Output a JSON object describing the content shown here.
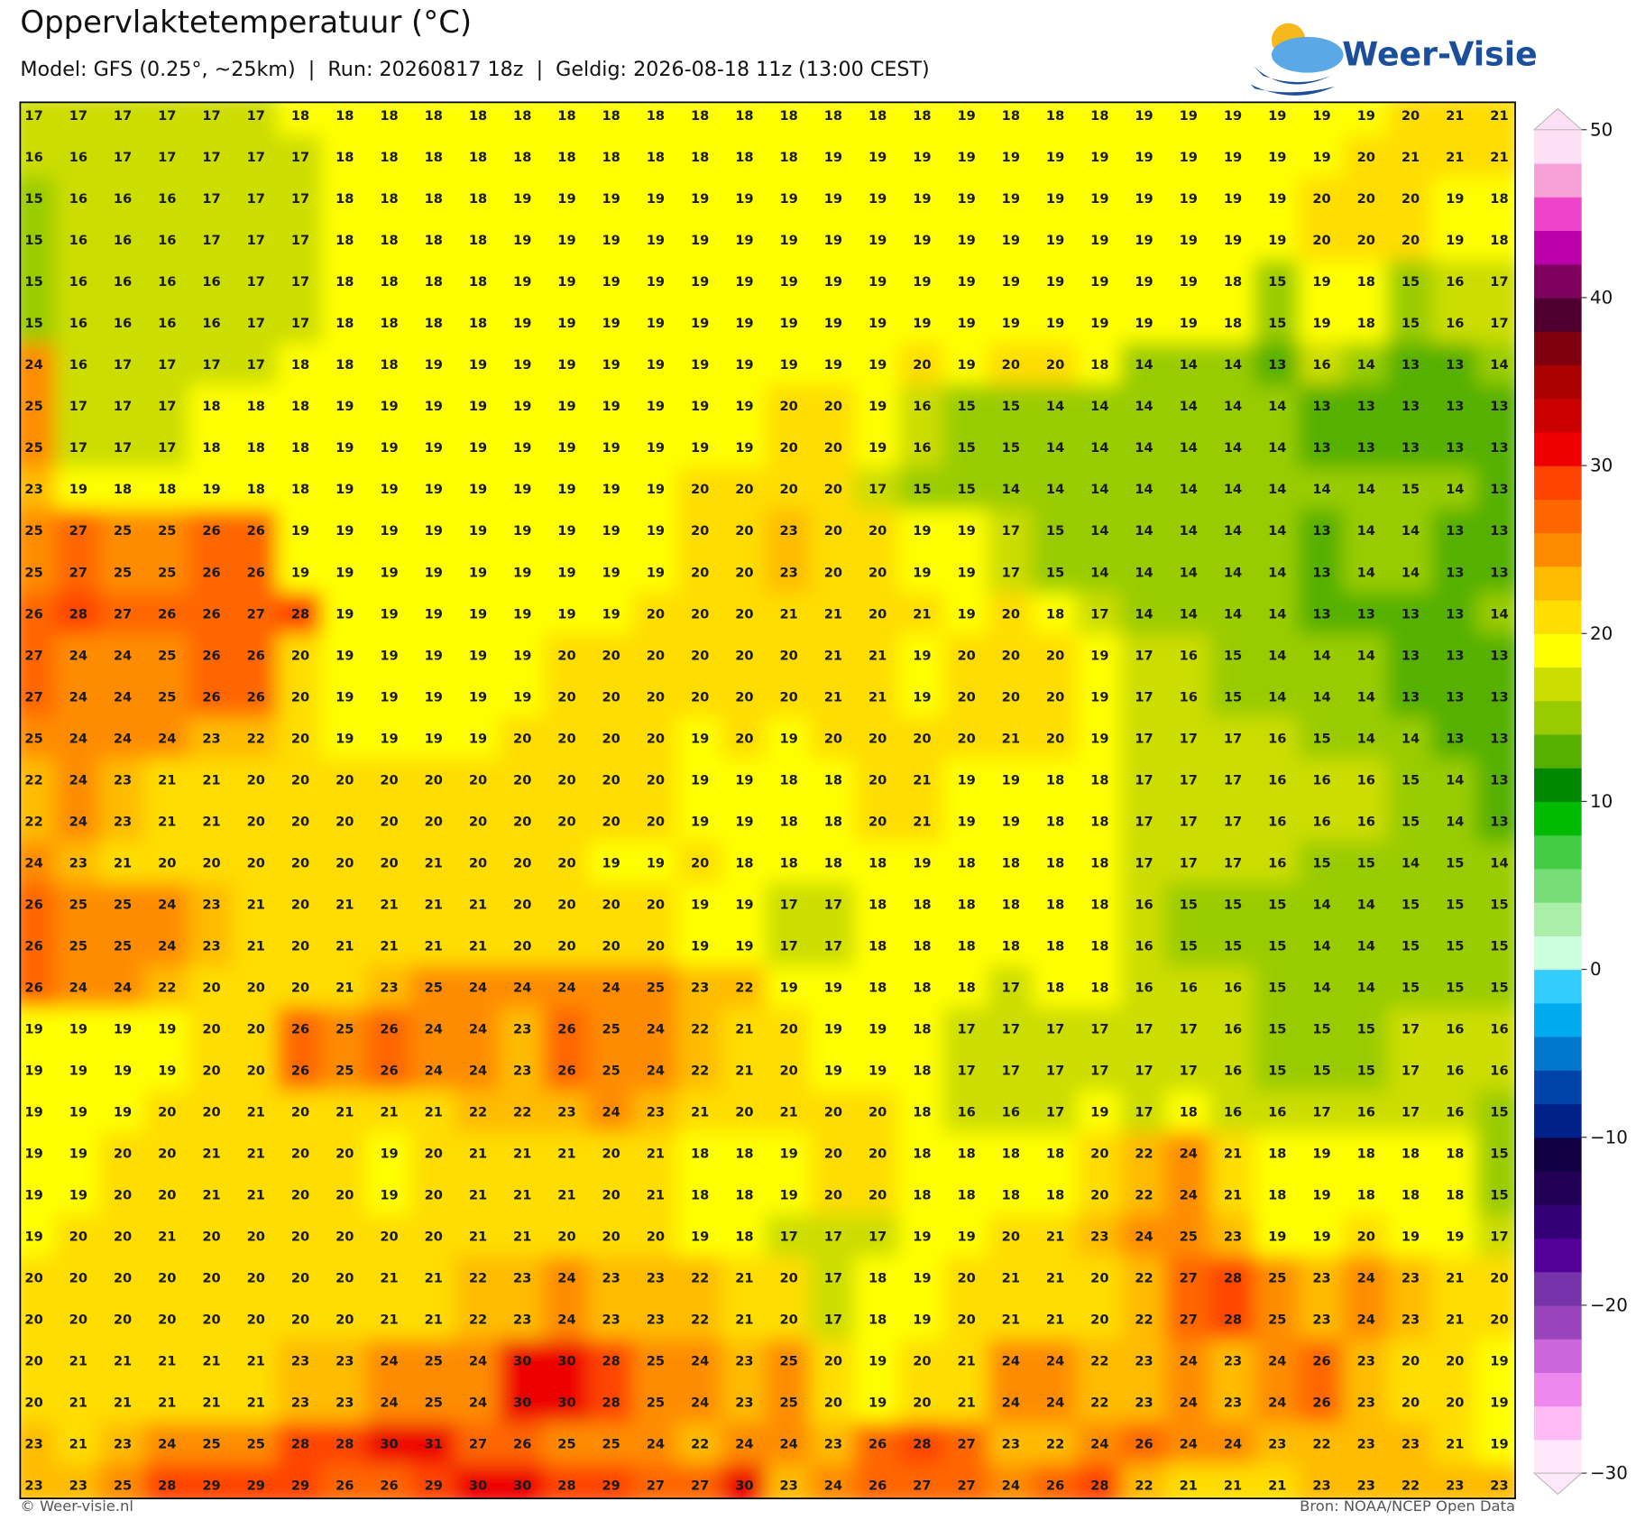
{
  "chart_data": {
    "type": "heatmap",
    "title": "Oppervlaktetemperatuur (°C)",
    "subtitle": "Model: GFS (0.25°, ~25km)  |  Run: 20260817 18z  |  Geldig: 2026-08-18 11z (13:00 CEST)",
    "logo": "Weer-Visie",
    "copyright": "© Weer-visie.nl",
    "source": "Bron: NOAA/NCEP Open Data",
    "values": [
      [
        17,
        17,
        17,
        17,
        17,
        17,
        18,
        18,
        18,
        18,
        18,
        18,
        18,
        18,
        18,
        18,
        18,
        18,
        18,
        18,
        18,
        19,
        18,
        18,
        18,
        19,
        19,
        19,
        19,
        19,
        19,
        20,
        21,
        21
      ],
      [
        16,
        16,
        17,
        17,
        17,
        17,
        17,
        18,
        18,
        18,
        18,
        18,
        18,
        18,
        18,
        18,
        18,
        18,
        19,
        19,
        19,
        19,
        19,
        19,
        19,
        19,
        19,
        19,
        19,
        19,
        20,
        21,
        21,
        21
      ],
      [
        15,
        16,
        16,
        16,
        17,
        17,
        17,
        18,
        18,
        18,
        18,
        19,
        19,
        19,
        19,
        19,
        19,
        19,
        19,
        19,
        19,
        19,
        19,
        19,
        19,
        19,
        19,
        19,
        19,
        20,
        20,
        20,
        19,
        18
      ],
      [
        15,
        16,
        16,
        16,
        17,
        17,
        17,
        18,
        18,
        18,
        18,
        19,
        19,
        19,
        19,
        19,
        19,
        19,
        19,
        19,
        19,
        19,
        19,
        19,
        19,
        19,
        19,
        19,
        19,
        20,
        20,
        20,
        19,
        18
      ],
      [
        15,
        16,
        16,
        16,
        16,
        17,
        17,
        18,
        18,
        18,
        18,
        19,
        19,
        19,
        19,
        19,
        19,
        19,
        19,
        19,
        19,
        19,
        19,
        19,
        19,
        19,
        19,
        18,
        15,
        19,
        18,
        15,
        16,
        17
      ],
      [
        15,
        16,
        16,
        16,
        16,
        17,
        17,
        18,
        18,
        18,
        18,
        19,
        19,
        19,
        19,
        19,
        19,
        19,
        19,
        19,
        19,
        19,
        19,
        19,
        19,
        19,
        19,
        18,
        15,
        19,
        18,
        15,
        16,
        17
      ],
      [
        24,
        16,
        17,
        17,
        17,
        17,
        18,
        18,
        18,
        19,
        19,
        19,
        19,
        19,
        19,
        19,
        19,
        19,
        19,
        19,
        20,
        19,
        20,
        20,
        18,
        14,
        14,
        14,
        13,
        16,
        14,
        13,
        13,
        14
      ],
      [
        25,
        17,
        17,
        17,
        18,
        18,
        18,
        19,
        19,
        19,
        19,
        19,
        19,
        19,
        19,
        19,
        19,
        20,
        20,
        19,
        16,
        15,
        15,
        14,
        14,
        14,
        14,
        14,
        14,
        13,
        13,
        13,
        13,
        13
      ],
      [
        25,
        17,
        17,
        17,
        18,
        18,
        18,
        19,
        19,
        19,
        19,
        19,
        19,
        19,
        19,
        19,
        19,
        20,
        20,
        19,
        16,
        15,
        15,
        14,
        14,
        14,
        14,
        14,
        14,
        13,
        13,
        13,
        13,
        13
      ],
      [
        23,
        19,
        18,
        18,
        19,
        18,
        18,
        19,
        19,
        19,
        19,
        19,
        19,
        19,
        19,
        20,
        20,
        20,
        20,
        17,
        15,
        15,
        14,
        14,
        14,
        14,
        14,
        14,
        14,
        14,
        14,
        15,
        14,
        13
      ],
      [
        25,
        27,
        25,
        25,
        26,
        26,
        19,
        19,
        19,
        19,
        19,
        19,
        19,
        19,
        19,
        20,
        20,
        23,
        20,
        20,
        19,
        19,
        17,
        15,
        14,
        14,
        14,
        14,
        14,
        13,
        14,
        14,
        13,
        13
      ],
      [
        25,
        27,
        25,
        25,
        26,
        26,
        19,
        19,
        19,
        19,
        19,
        19,
        19,
        19,
        19,
        20,
        20,
        23,
        20,
        20,
        19,
        19,
        17,
        15,
        14,
        14,
        14,
        14,
        14,
        13,
        14,
        14,
        13,
        13
      ],
      [
        26,
        28,
        27,
        26,
        26,
        27,
        28,
        19,
        19,
        19,
        19,
        19,
        19,
        19,
        20,
        20,
        20,
        21,
        21,
        20,
        21,
        19,
        20,
        18,
        17,
        14,
        14,
        14,
        14,
        13,
        13,
        13,
        13,
        14
      ],
      [
        27,
        24,
        24,
        25,
        26,
        26,
        20,
        19,
        19,
        19,
        19,
        19,
        20,
        20,
        20,
        20,
        20,
        20,
        21,
        21,
        19,
        20,
        20,
        20,
        19,
        17,
        16,
        15,
        14,
        14,
        14,
        13,
        13,
        13
      ],
      [
        27,
        24,
        24,
        25,
        26,
        26,
        20,
        19,
        19,
        19,
        19,
        19,
        20,
        20,
        20,
        20,
        20,
        20,
        21,
        21,
        19,
        20,
        20,
        20,
        19,
        17,
        16,
        15,
        14,
        14,
        14,
        13,
        13,
        13
      ],
      [
        25,
        24,
        24,
        24,
        23,
        22,
        20,
        19,
        19,
        19,
        19,
        20,
        20,
        20,
        20,
        19,
        20,
        19,
        20,
        20,
        20,
        20,
        21,
        20,
        19,
        17,
        17,
        17,
        16,
        15,
        14,
        14,
        13,
        13
      ],
      [
        22,
        24,
        23,
        21,
        21,
        20,
        20,
        20,
        20,
        20,
        20,
        20,
        20,
        20,
        20,
        19,
        19,
        18,
        18,
        20,
        21,
        19,
        19,
        18,
        18,
        17,
        17,
        17,
        16,
        16,
        16,
        15,
        14,
        13
      ],
      [
        22,
        24,
        23,
        21,
        21,
        20,
        20,
        20,
        20,
        20,
        20,
        20,
        20,
        20,
        20,
        19,
        19,
        18,
        18,
        20,
        21,
        19,
        19,
        18,
        18,
        17,
        17,
        17,
        16,
        16,
        16,
        15,
        14,
        13
      ],
      [
        24,
        23,
        21,
        20,
        20,
        20,
        20,
        20,
        20,
        21,
        20,
        20,
        20,
        19,
        19,
        20,
        18,
        18,
        18,
        18,
        19,
        18,
        18,
        18,
        18,
        17,
        17,
        17,
        16,
        15,
        15,
        14,
        15,
        14
      ],
      [
        26,
        25,
        25,
        24,
        23,
        21,
        20,
        21,
        21,
        21,
        21,
        20,
        20,
        20,
        20,
        19,
        19,
        17,
        17,
        18,
        18,
        18,
        18,
        18,
        18,
        16,
        15,
        15,
        15,
        14,
        14,
        15,
        15,
        15
      ],
      [
        26,
        25,
        25,
        24,
        23,
        21,
        20,
        21,
        21,
        21,
        21,
        20,
        20,
        20,
        20,
        19,
        19,
        17,
        17,
        18,
        18,
        18,
        18,
        18,
        18,
        16,
        15,
        15,
        15,
        14,
        14,
        15,
        15,
        15
      ],
      [
        26,
        24,
        24,
        22,
        20,
        20,
        20,
        21,
        23,
        25,
        24,
        24,
        24,
        24,
        25,
        23,
        22,
        19,
        19,
        18,
        18,
        18,
        17,
        18,
        18,
        16,
        16,
        16,
        15,
        14,
        14,
        15,
        15,
        15
      ],
      [
        19,
        19,
        19,
        19,
        20,
        20,
        26,
        25,
        26,
        24,
        24,
        23,
        26,
        25,
        24,
        22,
        21,
        20,
        19,
        19,
        18,
        17,
        17,
        17,
        17,
        17,
        17,
        16,
        15,
        15,
        15,
        17,
        16,
        16
      ],
      [
        19,
        19,
        19,
        19,
        20,
        20,
        26,
        25,
        26,
        24,
        24,
        23,
        26,
        25,
        24,
        22,
        21,
        20,
        19,
        19,
        18,
        17,
        17,
        17,
        17,
        17,
        17,
        16,
        15,
        15,
        15,
        17,
        16,
        16
      ],
      [
        19,
        19,
        19,
        20,
        20,
        21,
        20,
        21,
        21,
        21,
        22,
        22,
        23,
        24,
        23,
        21,
        20,
        21,
        20,
        20,
        18,
        16,
        16,
        17,
        19,
        17,
        18,
        16,
        16,
        17,
        16,
        17,
        16,
        15
      ],
      [
        19,
        19,
        20,
        20,
        21,
        21,
        20,
        20,
        19,
        20,
        21,
        21,
        21,
        20,
        21,
        18,
        18,
        19,
        20,
        20,
        18,
        18,
        18,
        18,
        20,
        22,
        24,
        21,
        18,
        19,
        18,
        18,
        18,
        15
      ],
      [
        19,
        19,
        20,
        20,
        21,
        21,
        20,
        20,
        19,
        20,
        21,
        21,
        21,
        20,
        21,
        18,
        18,
        19,
        20,
        20,
        18,
        18,
        18,
        18,
        20,
        22,
        24,
        21,
        18,
        19,
        18,
        18,
        18,
        15
      ],
      [
        19,
        20,
        20,
        21,
        20,
        20,
        20,
        20,
        20,
        20,
        21,
        21,
        20,
        20,
        20,
        19,
        18,
        17,
        17,
        17,
        19,
        19,
        20,
        21,
        23,
        24,
        25,
        23,
        19,
        19,
        20,
        19,
        19,
        17
      ],
      [
        20,
        20,
        20,
        20,
        20,
        20,
        20,
        20,
        21,
        21,
        22,
        23,
        24,
        23,
        23,
        22,
        21,
        20,
        17,
        18,
        19,
        20,
        21,
        21,
        20,
        22,
        27,
        28,
        25,
        23,
        24,
        23,
        21,
        20
      ],
      [
        20,
        20,
        20,
        20,
        20,
        20,
        20,
        20,
        21,
        21,
        22,
        23,
        24,
        23,
        23,
        22,
        21,
        20,
        17,
        18,
        19,
        20,
        21,
        21,
        20,
        22,
        27,
        28,
        25,
        23,
        24,
        23,
        21,
        20
      ],
      [
        20,
        21,
        21,
        21,
        21,
        21,
        23,
        23,
        24,
        25,
        24,
        30,
        30,
        28,
        25,
        24,
        23,
        25,
        20,
        19,
        20,
        21,
        24,
        24,
        22,
        23,
        24,
        23,
        24,
        26,
        23,
        20,
        20,
        19
      ],
      [
        20,
        21,
        21,
        21,
        21,
        21,
        23,
        23,
        24,
        25,
        24,
        30,
        30,
        28,
        25,
        24,
        23,
        25,
        20,
        19,
        20,
        21,
        24,
        24,
        22,
        23,
        24,
        23,
        24,
        26,
        23,
        20,
        20,
        19
      ],
      [
        23,
        21,
        23,
        24,
        25,
        25,
        28,
        28,
        30,
        31,
        27,
        26,
        25,
        25,
        24,
        22,
        24,
        24,
        23,
        26,
        28,
        27,
        23,
        22,
        24,
        26,
        24,
        24,
        23,
        22,
        23,
        23,
        21,
        19
      ],
      [
        23,
        23,
        25,
        28,
        29,
        29,
        29,
        26,
        26,
        29,
        30,
        30,
        28,
        29,
        27,
        27,
        30,
        23,
        24,
        26,
        27,
        27,
        24,
        26,
        28,
        22,
        21,
        21,
        21,
        23,
        23,
        22,
        23,
        23
      ]
    ],
    "colorbar": {
      "lim": [
        -30,
        50
      ],
      "ticks": [
        {
          "value": -30,
          "label": "−30"
        },
        {
          "value": -20,
          "label": "−20"
        },
        {
          "value": -10,
          "label": "−10"
        },
        0,
        10,
        20,
        30,
        40,
        50
      ],
      "colors": [
        "#ffe8fb",
        "#ffbbf5",
        "#ee88ee",
        "#cc66dd",
        "#9944bb",
        "#7733aa",
        "#550099",
        "#330077",
        "#220055",
        "#110044",
        "#002288",
        "#0044aa",
        "#0077cc",
        "#00aaee",
        "#33ccff",
        "#ccffdd",
        "#aaeeaa",
        "#77dd77",
        "#44cc44",
        "#00bb00",
        "#008800",
        "#55b000",
        "#99cc00",
        "#ccdd00",
        "#ffff00",
        "#ffdd00",
        "#ffbb00",
        "#ff8c00",
        "#ff6600",
        "#ff4400",
        "#ee0000",
        "#cc0000",
        "#aa0000",
        "#800010",
        "#500030",
        "#800060",
        "#bb00aa",
        "#ee44cc",
        "#f7a0d8",
        "#fde0f5"
      ]
    }
  }
}
